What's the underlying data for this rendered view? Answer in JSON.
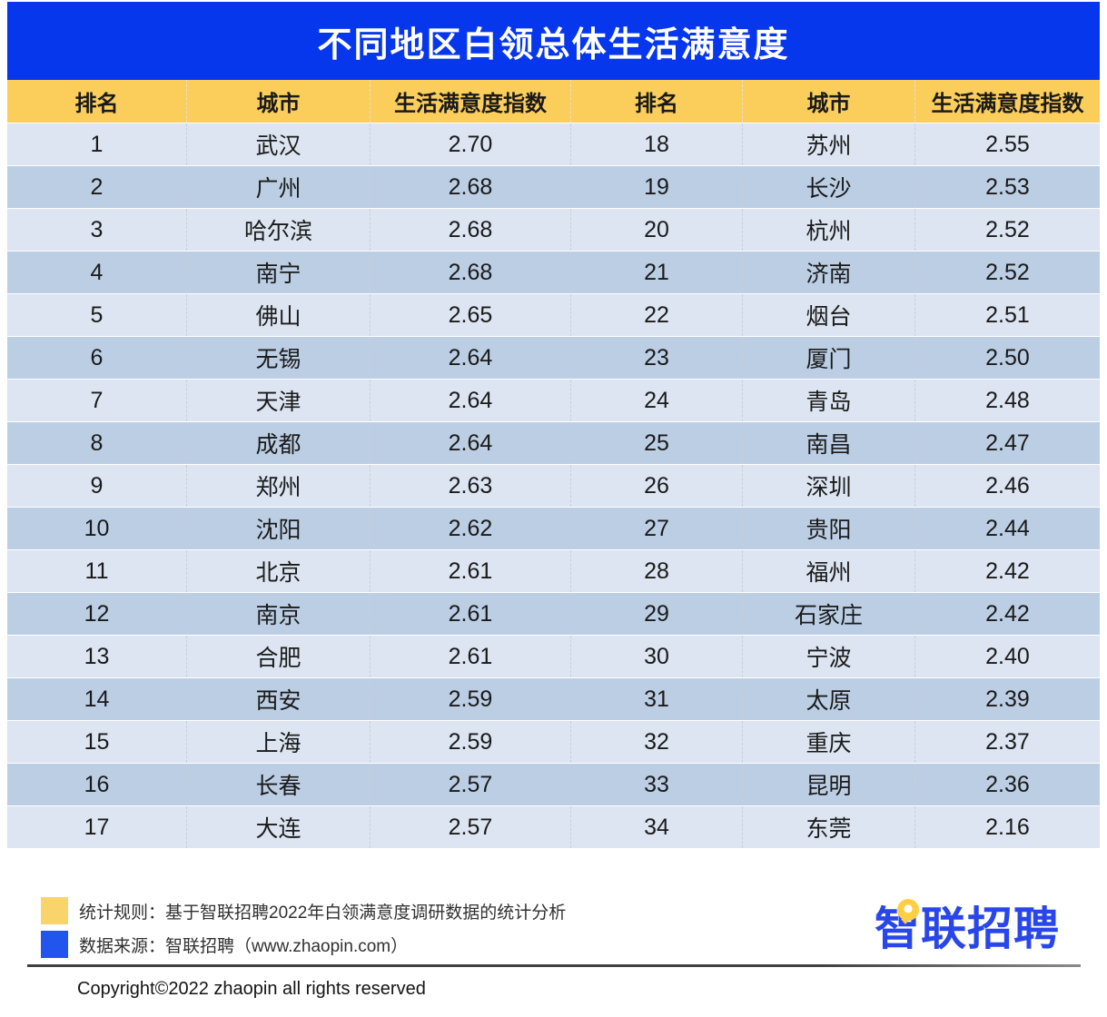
{
  "title": "不同地区白领总体生活满意度",
  "table": {
    "columns": [
      "排名",
      "城市",
      "生活满意度指数",
      "排名",
      "城市",
      "生活满意度指数"
    ],
    "rows": [
      [
        "1",
        "武汉",
        "2.70",
        "18",
        "苏州",
        "2.55"
      ],
      [
        "2",
        "广州",
        "2.68",
        "19",
        "长沙",
        "2.53"
      ],
      [
        "3",
        "哈尔滨",
        "2.68",
        "20",
        "杭州",
        "2.52"
      ],
      [
        "4",
        "南宁",
        "2.68",
        "21",
        "济南",
        "2.52"
      ],
      [
        "5",
        "佛山",
        "2.65",
        "22",
        "烟台",
        "2.51"
      ],
      [
        "6",
        "无锡",
        "2.64",
        "23",
        "厦门",
        "2.50"
      ],
      [
        "7",
        "天津",
        "2.64",
        "24",
        "青岛",
        "2.48"
      ],
      [
        "8",
        "成都",
        "2.64",
        "25",
        "南昌",
        "2.47"
      ],
      [
        "9",
        "郑州",
        "2.63",
        "26",
        "深圳",
        "2.46"
      ],
      [
        "10",
        "沈阳",
        "2.62",
        "27",
        "贵阳",
        "2.44"
      ],
      [
        "11",
        "北京",
        "2.61",
        "28",
        "福州",
        "2.42"
      ],
      [
        "12",
        "南京",
        "2.61",
        "29",
        "石家庄",
        "2.42"
      ],
      [
        "13",
        "合肥",
        "2.61",
        "30",
        "宁波",
        "2.40"
      ],
      [
        "14",
        "西安",
        "2.59",
        "31",
        "太原",
        "2.39"
      ],
      [
        "15",
        "上海",
        "2.59",
        "32",
        "重庆",
        "2.37"
      ],
      [
        "16",
        "长春",
        "2.57",
        "33",
        "昆明",
        "2.36"
      ],
      [
        "17",
        "大连",
        "2.57",
        "34",
        "东莞",
        "2.16"
      ]
    ]
  },
  "chart_data": {
    "type": "table",
    "title": "不同地区白领总体生活满意度",
    "columns": [
      "排名",
      "城市",
      "生活满意度指数"
    ],
    "rows": [
      [
        1,
        "武汉",
        2.7
      ],
      [
        2,
        "广州",
        2.68
      ],
      [
        3,
        "哈尔滨",
        2.68
      ],
      [
        4,
        "南宁",
        2.68
      ],
      [
        5,
        "佛山",
        2.65
      ],
      [
        6,
        "无锡",
        2.64
      ],
      [
        7,
        "天津",
        2.64
      ],
      [
        8,
        "成都",
        2.64
      ],
      [
        9,
        "郑州",
        2.63
      ],
      [
        10,
        "沈阳",
        2.62
      ],
      [
        11,
        "北京",
        2.61
      ],
      [
        12,
        "南京",
        2.61
      ],
      [
        13,
        "合肥",
        2.61
      ],
      [
        14,
        "西安",
        2.59
      ],
      [
        15,
        "上海",
        2.59
      ],
      [
        16,
        "长春",
        2.57
      ],
      [
        17,
        "大连",
        2.57
      ],
      [
        18,
        "苏州",
        2.55
      ],
      [
        19,
        "长沙",
        2.53
      ],
      [
        20,
        "杭州",
        2.52
      ],
      [
        21,
        "济南",
        2.52
      ],
      [
        22,
        "烟台",
        2.51
      ],
      [
        23,
        "厦门",
        2.5
      ],
      [
        24,
        "青岛",
        2.48
      ],
      [
        25,
        "南昌",
        2.47
      ],
      [
        26,
        "深圳",
        2.46
      ],
      [
        27,
        "贵阳",
        2.44
      ],
      [
        28,
        "福州",
        2.42
      ],
      [
        29,
        "石家庄",
        2.42
      ],
      [
        30,
        "宁波",
        2.4
      ],
      [
        31,
        "太原",
        2.39
      ],
      [
        32,
        "重庆",
        2.37
      ],
      [
        33,
        "昆明",
        2.36
      ],
      [
        34,
        "东莞",
        2.16
      ]
    ]
  },
  "footer": {
    "stat_rule": "统计规则：基于智联招聘2022年白领满意度调研数据的统计分析",
    "data_source": "数据来源：智联招聘（www.zhaopin.com）",
    "logo_text": "智联招聘",
    "copyright": "Copyright©2022 zhaopin all rights reserved"
  },
  "colors": {
    "title_bg": "#0637EC",
    "header_bg": "#FBCE5B",
    "row_light": "#DCE5F1",
    "row_dark": "#BCCEE4",
    "legend_yellow": "#F9D36B",
    "legend_blue": "#2254EE",
    "logo_blue": "#2946EA",
    "bubble_yellow": "#FFCE43",
    "body_text": "#1A1A1A"
  }
}
